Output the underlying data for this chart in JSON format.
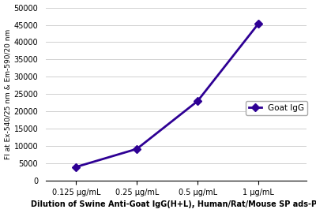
{
  "x_labels": [
    "0.125 μg/mL",
    "0.25 μg/mL",
    "0.5 μg/mL",
    "1 μg/mL"
  ],
  "x_values": [
    1,
    2,
    3,
    4
  ],
  "y_values": [
    4000,
    9200,
    23000,
    45300
  ],
  "line_color": "#2E0094",
  "marker": "D",
  "marker_size": 5,
  "legend_label": "Goat IgG",
  "ylabel": "FI at Ex-540/25 nm & Em-590/20 nm",
  "xlabel": "Dilution of Swine Anti-Goat IgG(H+L), Human/Rat/Mouse SP ads-PE",
  "ylim": [
    0,
    50000
  ],
  "yticks": [
    0,
    5000,
    10000,
    15000,
    20000,
    25000,
    30000,
    35000,
    40000,
    45000,
    50000
  ],
  "background_color": "#ffffff",
  "grid_color": "#d0d0d0"
}
